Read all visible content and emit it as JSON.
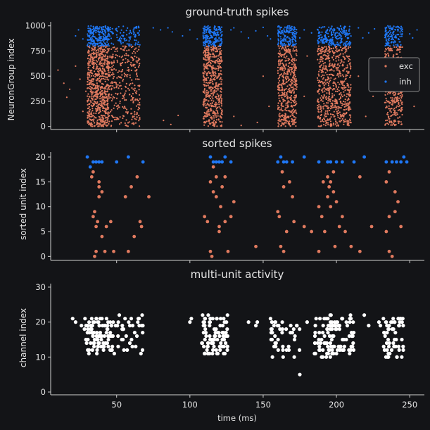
{
  "chart_data": [
    {
      "type": "scatter",
      "title": "ground-truth spikes",
      "xlabel": "",
      "ylabel": "NeuronGroup index",
      "xlim": [
        5,
        260
      ],
      "ylim": [
        -30,
        1040
      ],
      "xticks": [
        50,
        100,
        150,
        200,
        250
      ],
      "yticks": [
        0,
        250,
        500,
        750,
        1000
      ],
      "legend": {
        "placement": "right",
        "entries": [
          "exc",
          "inh"
        ]
      },
      "series": [
        {
          "name": "exc",
          "color": "#e07a5f",
          "y_range": [
            0,
            800
          ],
          "marker_size": "small"
        },
        {
          "name": "inh",
          "color": "#1f77f5",
          "y_range": [
            800,
            1000
          ],
          "marker_size": "small"
        }
      ],
      "bursts": [
        {
          "x": [
            30,
            45
          ],
          "exc_points": 700,
          "inh_points": 220
        },
        {
          "x": [
            45,
            66
          ],
          "exc_points": 320,
          "inh_points": 90
        },
        {
          "x": [
            109,
            122
          ],
          "exc_points": 520,
          "inh_points": 190
        },
        {
          "x": [
            160,
            173
          ],
          "exc_points": 460,
          "inh_points": 150
        },
        {
          "x": [
            187,
            210
          ],
          "exc_points": 650,
          "inh_points": 200
        },
        {
          "x": [
            233,
            245
          ],
          "exc_points": 380,
          "inh_points": 120
        }
      ],
      "scattered_exc": [
        [
          10,
          560
        ],
        [
          14,
          430
        ],
        [
          16,
          290
        ],
        [
          18,
          370
        ],
        [
          22,
          600
        ],
        [
          25,
          470
        ],
        [
          27,
          150
        ],
        [
          29,
          350
        ],
        [
          82,
          60
        ],
        [
          87,
          20
        ],
        [
          92,
          110
        ],
        [
          130,
          100
        ],
        [
          135,
          10
        ],
        [
          146,
          40
        ],
        [
          150,
          500
        ],
        [
          154,
          200
        ],
        [
          178,
          300
        ],
        [
          180,
          700
        ],
        [
          215,
          500
        ],
        [
          220,
          100
        ],
        [
          225,
          300
        ],
        [
          228,
          650
        ],
        [
          250,
          500
        ],
        [
          253,
          200
        ]
      ],
      "scattered_inh": [
        [
          22,
          900
        ],
        [
          24,
          960
        ],
        [
          27,
          870
        ],
        [
          75,
          980
        ],
        [
          80,
          960
        ],
        [
          85,
          980
        ],
        [
          88,
          940
        ],
        [
          95,
          900
        ],
        [
          100,
          960
        ],
        [
          105,
          870
        ],
        [
          128,
          960
        ],
        [
          130,
          980
        ],
        [
          135,
          940
        ],
        [
          140,
          880
        ],
        [
          145,
          950
        ],
        [
          150,
          985
        ],
        [
          153,
          900
        ],
        [
          155,
          870
        ],
        [
          175,
          880
        ],
        [
          178,
          960
        ],
        [
          183,
          930
        ],
        [
          215,
          980
        ],
        [
          218,
          880
        ],
        [
          222,
          930
        ],
        [
          226,
          970
        ],
        [
          250,
          920
        ],
        [
          252,
          880
        ],
        [
          255,
          960
        ]
      ]
    },
    {
      "type": "scatter",
      "title": "sorted spikes",
      "xlabel": "",
      "ylabel": "sorted unit index",
      "xlim": [
        5,
        260
      ],
      "ylim": [
        -0.8,
        21
      ],
      "xticks": [
        50,
        100,
        150,
        200,
        250
      ],
      "yticks": [
        0,
        5,
        10,
        15,
        20
      ],
      "series": [
        {
          "name": "",
          "color": "#1f77f5",
          "points": [
            [
              30,
              20
            ],
            [
              32,
              18
            ],
            [
              34,
              19
            ],
            [
              36,
              19
            ],
            [
              38,
              19
            ],
            [
              40,
              19
            ],
            [
              50,
              19
            ],
            [
              58,
              20
            ],
            [
              68,
              19
            ],
            [
              114,
              20
            ],
            [
              116,
              19
            ],
            [
              118,
              19
            ],
            [
              120,
              19
            ],
            [
              122,
              19
            ],
            [
              124,
              20
            ],
            [
              128,
              19
            ],
            [
              160,
              19
            ],
            [
              162,
              20
            ],
            [
              164,
              19
            ],
            [
              166,
              19
            ],
            [
              170,
              19
            ],
            [
              178,
              20
            ],
            [
              188,
              19
            ],
            [
              194,
              19
            ],
            [
              196,
              19
            ],
            [
              200,
              19
            ],
            [
              204,
              19
            ],
            [
              212,
              19
            ],
            [
              219,
              20
            ],
            [
              234,
              19
            ],
            [
              238,
              19
            ],
            [
              241,
              19
            ],
            [
              244,
              19
            ],
            [
              246,
              20
            ],
            [
              248,
              19
            ]
          ]
        },
        {
          "name": "",
          "color": "#e07a5f",
          "points": [
            [
              33,
              16
            ],
            [
              34,
              17
            ],
            [
              34,
              8
            ],
            [
              36,
              1
            ],
            [
              36,
              6
            ],
            [
              35,
              0
            ],
            [
              35,
              9
            ],
            [
              37,
              7
            ],
            [
              38,
              12
            ],
            [
              38,
              14
            ],
            [
              38,
              15
            ],
            [
              40,
              13
            ],
            [
              40,
              4
            ],
            [
              42,
              1
            ],
            [
              43,
              6
            ],
            [
              46,
              7
            ],
            [
              48,
              1
            ],
            [
              56,
              12
            ],
            [
              58,
              1
            ],
            [
              60,
              14
            ],
            [
              62,
              4
            ],
            [
              64,
              16
            ],
            [
              66,
              7
            ],
            [
              67,
              6
            ],
            [
              72,
              12
            ],
            [
              110,
              8
            ],
            [
              112,
              7
            ],
            [
              114,
              1
            ],
            [
              114,
              15
            ],
            [
              115,
              0
            ],
            [
              116,
              13
            ],
            [
              116,
              18
            ],
            [
              118,
              12
            ],
            [
              118,
              16
            ],
            [
              120,
              6
            ],
            [
              120,
              5
            ],
            [
              121,
              10
            ],
            [
              122,
              14
            ],
            [
              124,
              7
            ],
            [
              124,
              16
            ],
            [
              126,
              1
            ],
            [
              128,
              8
            ],
            [
              130,
              11
            ],
            [
              145,
              2
            ],
            [
              160,
              9
            ],
            [
              161,
              8
            ],
            [
              162,
              2
            ],
            [
              163,
              17
            ],
            [
              164,
              1
            ],
            [
              164,
              14
            ],
            [
              166,
              5
            ],
            [
              168,
              15
            ],
            [
              170,
              12
            ],
            [
              171,
              7
            ],
            [
              178,
              6
            ],
            [
              183,
              5
            ],
            [
              188,
              10
            ],
            [
              188,
              1
            ],
            [
              190,
              8
            ],
            [
              191,
              15
            ],
            [
              192,
              5
            ],
            [
              194,
              16
            ],
            [
              194,
              12
            ],
            [
              195,
              14
            ],
            [
              196,
              15
            ],
            [
              196,
              10
            ],
            [
              198,
              13
            ],
            [
              198,
              17
            ],
            [
              199,
              2
            ],
            [
              200,
              11
            ],
            [
              202,
              6
            ],
            [
              204,
              8
            ],
            [
              206,
              5
            ],
            [
              210,
              2
            ],
            [
              216,
              1
            ],
            [
              216,
              16
            ],
            [
              224,
              6
            ],
            [
              234,
              5
            ],
            [
              234,
              15
            ],
            [
              236,
              1
            ],
            [
              236,
              17
            ],
            [
              236,
              8
            ],
            [
              238,
              0
            ],
            [
              240,
              9
            ],
            [
              240,
              13
            ],
            [
              242,
              11
            ],
            [
              244,
              6
            ]
          ]
        }
      ]
    },
    {
      "type": "scatter",
      "title": "multi-unit activity",
      "xlabel": "time (ms)",
      "ylabel": "channel index",
      "xlim": [
        5,
        260
      ],
      "ylim": [
        -0.8,
        31
      ],
      "xticks": [
        50,
        100,
        150,
        200,
        250
      ],
      "yticks": [
        0,
        10,
        20,
        30
      ],
      "series": [
        {
          "name": "",
          "color": "#ffffff",
          "bursts": [
            {
              "x": [
                28,
                46
              ],
              "y": [
                11,
                21
              ],
              "points": 85
            },
            {
              "x": [
                46,
                68
              ],
              "y": [
                11,
                22
              ],
              "points": 45
            },
            {
              "x": [
                108,
                126
              ],
              "y": [
                11,
                22
              ],
              "points": 90
            },
            {
              "x": [
                155,
                175
              ],
              "y": [
                10,
                21
              ],
              "points": 45
            },
            {
              "x": [
                185,
                212
              ],
              "y": [
                10,
                22
              ],
              "points": 110
            },
            {
              "x": [
                232,
                246
              ],
              "y": [
                10,
                21
              ],
              "points": 60
            }
          ],
          "points": [
            [
              20,
              21
            ],
            [
              22,
              20
            ],
            [
              26,
              19
            ],
            [
              100,
              20
            ],
            [
              101,
              21
            ],
            [
              145,
              19
            ],
            [
              146,
              20
            ],
            [
              175,
              5
            ],
            [
              180,
              20
            ],
            [
              219,
              22
            ],
            [
              222,
              19
            ],
            [
              229,
              20
            ],
            [
              230,
              19
            ],
            [
              140,
              20
            ]
          ]
        }
      ]
    }
  ]
}
